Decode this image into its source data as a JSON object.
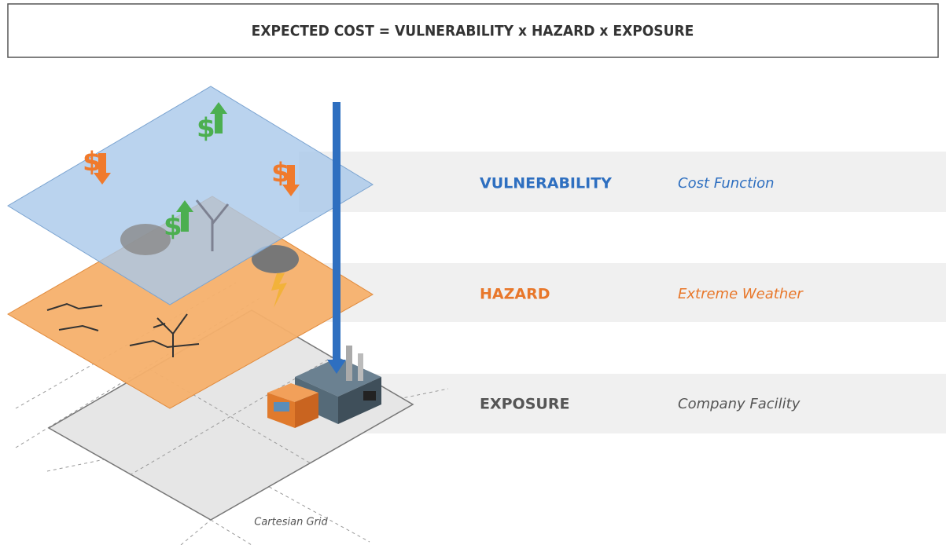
{
  "header": {
    "formula": "EXPECTED COST = VULNERABILITY x HAZARD x EXPOSURE"
  },
  "layers": [
    {
      "name": "VULNERABILITY",
      "description": "Cost Function"
    },
    {
      "name": "HAZARD",
      "description": "Extreme Weather"
    },
    {
      "name": "EXPOSURE",
      "description": "Company Facility"
    }
  ],
  "grid_label": "Cartesian Grid",
  "currency_symbol": "$"
}
